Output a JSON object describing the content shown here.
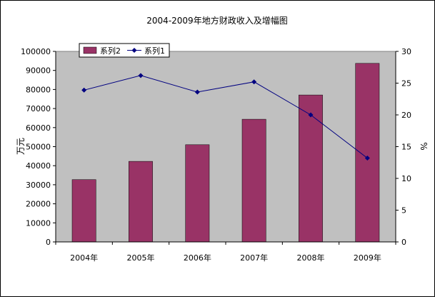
{
  "chart_data": {
    "type": "bar",
    "title": "2004-2009年地方财政收入及增幅图",
    "categories": [
      "2004年",
      "2005年",
      "2006年",
      "2007年",
      "2008年",
      "2009年"
    ],
    "ylabel_left": "万元",
    "ylabel_right": "%",
    "ylim_left": [
      0,
      100000
    ],
    "yticks_left": [
      "0",
      "10000",
      "20000",
      "30000",
      "40000",
      "50000",
      "60000",
      "70000",
      "80000",
      "90000",
      "100000"
    ],
    "ylim_right": [
      0,
      30
    ],
    "yticks_right": [
      "0",
      "5",
      "10",
      "15",
      "20",
      "25",
      "30"
    ],
    "grid": false,
    "legend_position": "top-left",
    "plot_background": "#c0c0c0",
    "series": [
      {
        "name": "系列2",
        "kind": "bar",
        "axis": "left",
        "color": "#993366",
        "values": [
          32700,
          42300,
          51000,
          64400,
          77100,
          93700
        ]
      },
      {
        "name": "系列1",
        "kind": "line",
        "axis": "right",
        "color": "#000080",
        "marker": "diamond",
        "values": [
          23.9,
          26.2,
          23.6,
          25.2,
          20.0,
          13.2
        ]
      }
    ]
  }
}
